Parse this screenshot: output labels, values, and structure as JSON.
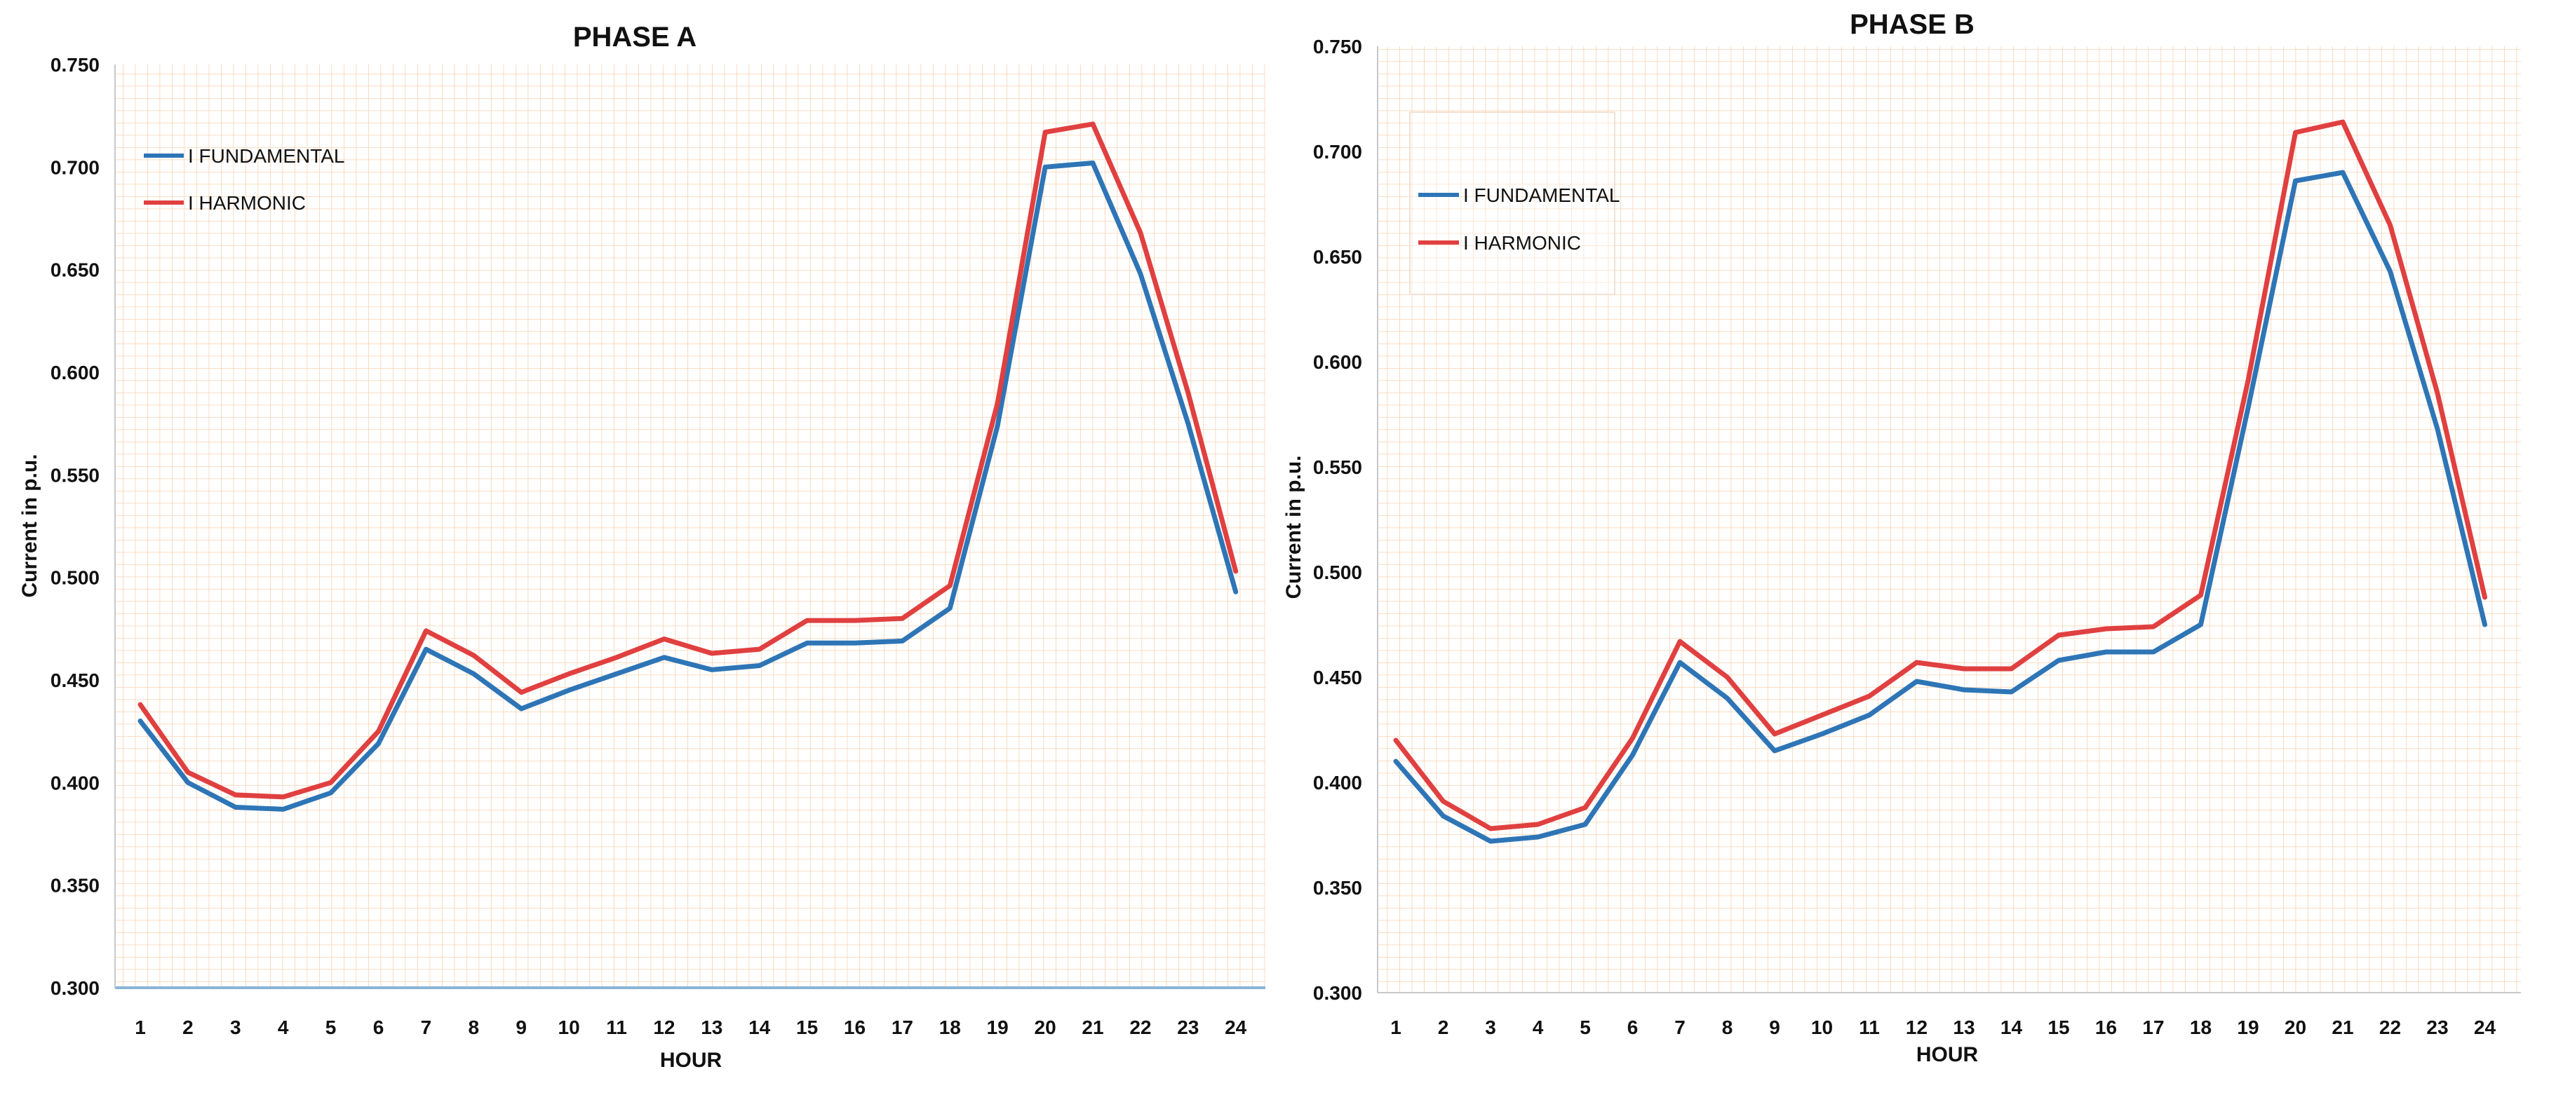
{
  "chart_data": [
    {
      "type": "line",
      "title": "PHASE A",
      "xlabel": "HOUR",
      "ylabel": "Current in  p.u.",
      "ylim": [
        0.3,
        0.75
      ],
      "yticks": [
        "0.300",
        "0.350",
        "0.400",
        "0.450",
        "0.500",
        "0.550",
        "0.600",
        "0.650",
        "0.700",
        "0.750"
      ],
      "categories": [
        "1",
        "2",
        "3",
        "4",
        "5",
        "6",
        "7",
        "8",
        "9",
        "10",
        "11",
        "12",
        "13",
        "14",
        "15",
        "16",
        "17",
        "18",
        "19",
        "20",
        "21",
        "22",
        "23",
        "24"
      ],
      "legend_position": "top-left",
      "grid": true,
      "series": [
        {
          "name": "I FUNDAMENTAL",
          "color": "#2e75b6",
          "values": [
            0.43,
            0.4,
            0.388,
            0.387,
            0.395,
            0.419,
            0.465,
            0.453,
            0.436,
            0.445,
            0.453,
            0.461,
            0.455,
            0.457,
            0.468,
            0.468,
            0.469,
            0.485,
            0.574,
            0.7,
            0.702,
            0.648,
            0.575,
            0.493
          ]
        },
        {
          "name": "I HARMONIC",
          "color": "#e04040",
          "values": [
            0.438,
            0.405,
            0.394,
            0.393,
            0.4,
            0.425,
            0.474,
            0.462,
            0.444,
            0.453,
            0.461,
            0.47,
            0.463,
            0.465,
            0.479,
            0.479,
            0.48,
            0.496,
            0.585,
            0.717,
            0.721,
            0.668,
            0.59,
            0.503
          ]
        }
      ]
    },
    {
      "type": "line",
      "title": "PHASE B",
      "xlabel": "HOUR",
      "ylabel": "Current in  p.u.",
      "ylim": [
        0.3,
        0.75
      ],
      "yticks": [
        "0.300",
        "0.350",
        "0.400",
        "0.450",
        "0.500",
        "0.550",
        "0.600",
        "0.650",
        "0.700",
        "0.750"
      ],
      "categories": [
        "1",
        "2",
        "3",
        "4",
        "5",
        "6",
        "7",
        "8",
        "9",
        "10",
        "11",
        "12",
        "13",
        "14",
        "15",
        "16",
        "17",
        "18",
        "19",
        "20",
        "21",
        "22",
        "23",
        "24"
      ],
      "legend_position": "top-left",
      "grid": true,
      "series": [
        {
          "name": "I FUNDAMENTAL",
          "color": "#2e75b6",
          "values": [
            0.41,
            0.384,
            0.372,
            0.374,
            0.38,
            0.413,
            0.457,
            0.44,
            0.415,
            0.423,
            0.432,
            0.448,
            0.444,
            0.443,
            0.458,
            0.462,
            0.462,
            0.475,
            0.578,
            0.686,
            0.69,
            0.643,
            0.568,
            0.475
          ]
        },
        {
          "name": "I HARMONIC",
          "color": "#e04040",
          "values": [
            0.42,
            0.391,
            0.378,
            0.38,
            0.388,
            0.421,
            0.467,
            0.45,
            0.423,
            0.432,
            0.441,
            0.457,
            0.454,
            0.454,
            0.47,
            0.473,
            0.474,
            0.489,
            0.591,
            0.709,
            0.714,
            0.665,
            0.585,
            0.488
          ]
        }
      ]
    }
  ]
}
